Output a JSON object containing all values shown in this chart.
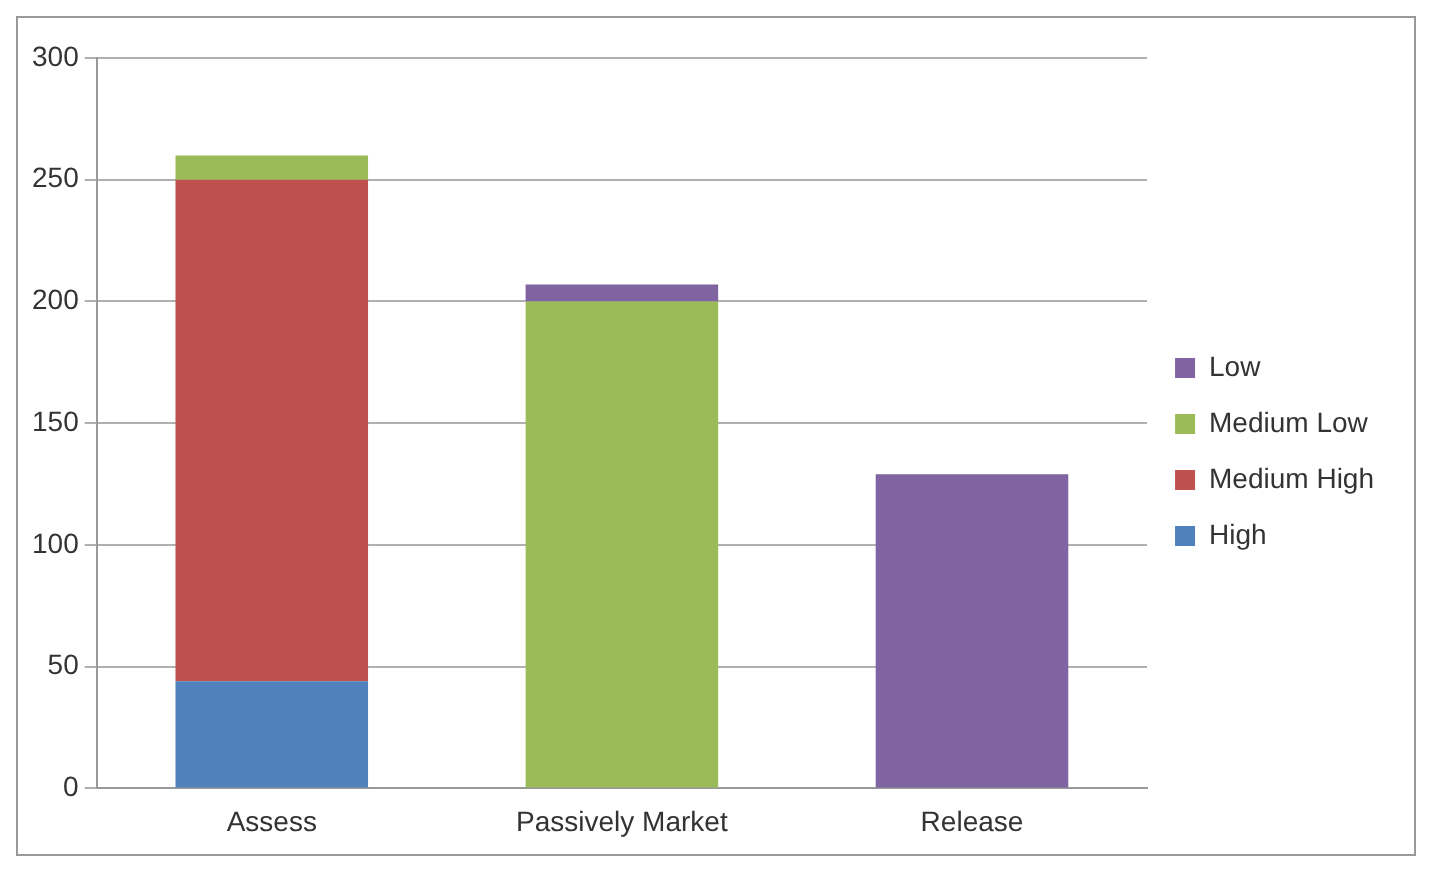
{
  "chart_data": {
    "type": "bar",
    "stacked": true,
    "categories": [
      "Assess",
      "Passively Market",
      "Release"
    ],
    "series": [
      {
        "name": "High",
        "color": "#4f81bd",
        "values": [
          44,
          null,
          null
        ]
      },
      {
        "name": "Medium High",
        "color": "#c0504d",
        "values": [
          206,
          null,
          null
        ]
      },
      {
        "name": "Medium Low",
        "color": "#9bbb59",
        "values": [
          10,
          200,
          null
        ]
      },
      {
        "name": "Low",
        "color": "#8064a2",
        "values": [
          null,
          7,
          129
        ]
      }
    ],
    "ylim": [
      0,
      300
    ],
    "yticks": [
      0,
      50,
      100,
      150,
      200,
      250,
      300
    ],
    "grid": "y",
    "legend": "right"
  }
}
